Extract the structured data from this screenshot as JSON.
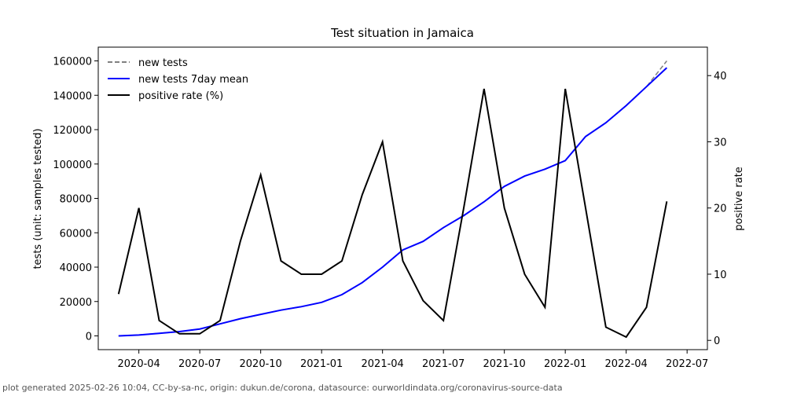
{
  "chart_data": {
    "type": "line",
    "title": "Test situation in Jamaica",
    "ylabel": "tests (unit: samples tested)",
    "y2label": "positive rate",
    "footer": "plot generated 2025-02-26 10:04, CC-by-sa-nc, origin: dukun.de/corona, datasource: ourworldindata.org/coronavirus-source-data",
    "x": [
      "2020-03",
      "2020-04",
      "2020-05",
      "2020-06",
      "2020-07",
      "2020-08",
      "2020-09",
      "2020-10",
      "2020-11",
      "2020-12",
      "2021-01",
      "2021-02",
      "2021-03",
      "2021-04",
      "2021-05",
      "2021-06",
      "2021-07",
      "2021-08",
      "2021-09",
      "2021-10",
      "2021-11",
      "2021-12",
      "2022-01",
      "2022-02",
      "2022-03",
      "2022-04",
      "2022-05",
      "2022-06"
    ],
    "xlim": [
      "2020-02",
      "2022-08"
    ],
    "xticks": [
      "2020-04",
      "2020-07",
      "2020-10",
      "2021-01",
      "2021-04",
      "2021-07",
      "2021-10",
      "2022-01",
      "2022-04",
      "2022-07"
    ],
    "ylim": [
      -8000,
      168000
    ],
    "yticks": [
      0,
      20000,
      40000,
      60000,
      80000,
      100000,
      120000,
      140000,
      160000
    ],
    "y2lim": [
      -1.4,
      44.3
    ],
    "y2ticks": [
      0,
      10,
      20,
      30,
      40
    ],
    "legend": "upper-left",
    "series": [
      {
        "name": "new tests",
        "color": "#808080",
        "style": "dashed",
        "values": [
          0,
          500,
          1500,
          2500,
          4000,
          7000,
          10000,
          12500,
          15000,
          17000,
          19500,
          24000,
          31000,
          40000,
          50000,
          55000,
          63000,
          70000,
          78000,
          87000,
          93000,
          97000,
          102000,
          116000,
          124000,
          134000,
          145000,
          160000
        ]
      },
      {
        "name": "new tests 7day mean",
        "color": "#0000ff",
        "style": "solid",
        "values": [
          0,
          500,
          1500,
          2500,
          4000,
          7000,
          10000,
          12500,
          15000,
          17000,
          19500,
          24000,
          31000,
          40000,
          50000,
          55000,
          63000,
          70000,
          78000,
          87000,
          93000,
          97000,
          102000,
          116000,
          124000,
          134000,
          145000,
          156000
        ]
      },
      {
        "name": "positive rate (%)",
        "color": "#000000",
        "style": "solid",
        "axis": "y2",
        "values": [
          7,
          20,
          3,
          1,
          1,
          3,
          15,
          25,
          12,
          10,
          10,
          12,
          22,
          30,
          12,
          6,
          3,
          20,
          38,
          20,
          10,
          5,
          38,
          20,
          2,
          0.5,
          5,
          21
        ]
      }
    ]
  }
}
